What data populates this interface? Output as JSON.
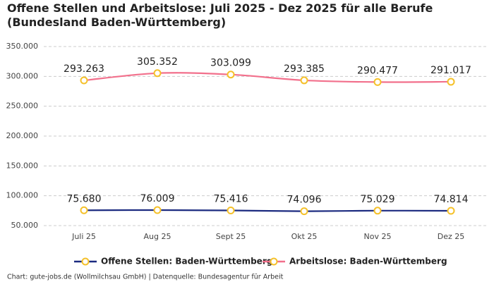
{
  "chart_data": {
    "type": "line",
    "title": "Offene Stellen und Arbeitslose: Juli 2025 - Dez 2025 für alle Berufe (Bundesland Baden-Württemberg)",
    "categories": [
      "Juli 25",
      "Aug 25",
      "Sept 25",
      "Okt 25",
      "Nov 25",
      "Dez 25"
    ],
    "series": [
      {
        "name": "Offene Stellen: Baden-Württemberg",
        "color": "#1c2b80",
        "values": [
          75680,
          76009,
          75416,
          74096,
          75029,
          74814
        ],
        "value_labels": [
          "75.680",
          "76.009",
          "75.416",
          "74.096",
          "75.029",
          "74.814"
        ]
      },
      {
        "name": "Arbeitslose: Baden-Württemberg",
        "color": "#f2708c",
        "values": [
          293263,
          305352,
          303099,
          293385,
          290477,
          291017
        ],
        "value_labels": [
          "293.263",
          "305.352",
          "303.099",
          "293.385",
          "290.477",
          "291.017"
        ]
      }
    ],
    "marker_color": "#f5c12a",
    "ylim": [
      50000,
      350000
    ],
    "yticks": [
      {
        "value": 50000,
        "label": "50.000"
      },
      {
        "value": 100000,
        "label": "100.000"
      },
      {
        "value": 150000,
        "label": "150.000"
      },
      {
        "value": 200000,
        "label": "200.000"
      },
      {
        "value": 250000,
        "label": "250.000"
      },
      {
        "value": 300000,
        "label": "300.000"
      },
      {
        "value": 350000,
        "label": "350.000"
      }
    ],
    "grid": true,
    "legend": "bottom",
    "source": "Chart: gute-jobs.de (Wollmilchsau GmbH) | Datenquelle: Bundesagentur für Arbeit"
  }
}
